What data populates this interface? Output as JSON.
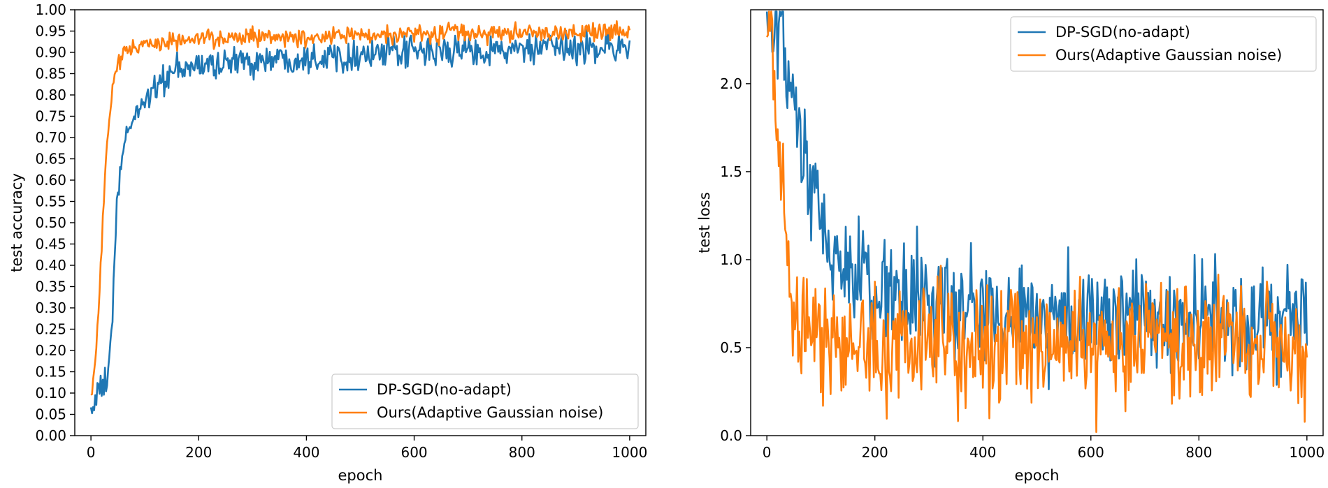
{
  "chart_data": [
    {
      "type": "line",
      "xlabel": "epoch",
      "ylabel": "test accuracy",
      "xlim": [
        -30,
        1030
      ],
      "ylim": [
        0.0,
        1.0
      ],
      "xticks": [
        0,
        200,
        400,
        600,
        800,
        1000
      ],
      "xtick_labels": [
        "0",
        "200",
        "400",
        "600",
        "800",
        "1000"
      ],
      "yticks": [
        0.0,
        0.05,
        0.1,
        0.15,
        0.2,
        0.25,
        0.3,
        0.35,
        0.4,
        0.45,
        0.5,
        0.55,
        0.6,
        0.65,
        0.7,
        0.75,
        0.8,
        0.85,
        0.9,
        0.95,
        1.0
      ],
      "ytick_labels": [
        "0.00",
        "0.05",
        "0.10",
        "0.15",
        "0.20",
        "0.25",
        "0.30",
        "0.35",
        "0.40",
        "0.45",
        "0.50",
        "0.55",
        "0.60",
        "0.65",
        "0.70",
        "0.75",
        "0.80",
        "0.85",
        "0.90",
        "0.95",
        "1.00"
      ],
      "legend_position": "lower-right",
      "x": [
        0,
        10,
        20,
        30,
        40,
        50,
        60,
        70,
        80,
        100,
        120,
        150,
        200,
        300,
        400,
        500,
        600,
        700,
        800,
        900,
        1000
      ],
      "series": [
        {
          "name": "DP-SGD(no-adapt)",
          "color": "#1f77b4",
          "values": [
            0.06,
            0.09,
            0.11,
            0.13,
            0.28,
            0.58,
            0.66,
            0.72,
            0.75,
            0.79,
            0.82,
            0.85,
            0.87,
            0.88,
            0.89,
            0.895,
            0.9,
            0.905,
            0.905,
            0.91,
            0.915
          ],
          "noise": 0.018
        },
        {
          "name": "Ours(Adaptive Gaussian noise)",
          "color": "#ff7f0e",
          "values": [
            0.09,
            0.2,
            0.45,
            0.7,
            0.82,
            0.87,
            0.9,
            0.905,
            0.91,
            0.915,
            0.92,
            0.925,
            0.93,
            0.935,
            0.935,
            0.94,
            0.945,
            0.945,
            0.945,
            0.945,
            0.945
          ],
          "noise": 0.011
        }
      ]
    },
    {
      "type": "line",
      "xlabel": "epoch",
      "ylabel": "test loss",
      "xlim": [
        -30,
        1030
      ],
      "ylim": [
        0.0,
        2.42
      ],
      "xticks": [
        0,
        200,
        400,
        600,
        800,
        1000
      ],
      "xtick_labels": [
        "0",
        "200",
        "400",
        "600",
        "800",
        "1000"
      ],
      "yticks": [
        0.0,
        0.5,
        1.0,
        1.5,
        2.0
      ],
      "ytick_labels": [
        "0.0",
        "0.5",
        "1.0",
        "1.5",
        "2.0"
      ],
      "legend_position": "upper-right",
      "x": [
        0,
        10,
        20,
        30,
        40,
        50,
        60,
        70,
        80,
        100,
        120,
        150,
        200,
        300,
        400,
        500,
        600,
        700,
        800,
        900,
        1000
      ],
      "series": [
        {
          "name": "DP-SGD(no-adapt)",
          "color": "#1f77b4",
          "values": [
            2.3,
            2.28,
            2.25,
            2.18,
            2.05,
            1.85,
            1.65,
            1.5,
            1.4,
            1.2,
            1.05,
            0.92,
            0.82,
            0.75,
            0.7,
            0.68,
            0.68,
            0.67,
            0.66,
            0.66,
            0.65
          ],
          "noise": 0.16
        },
        {
          "name": "Ours(Adaptive Gaussian noise)",
          "color": "#ff7f0e",
          "values": [
            2.3,
            2.15,
            1.8,
            1.3,
            0.85,
            0.65,
            0.58,
            0.56,
            0.55,
            0.55,
            0.55,
            0.54,
            0.53,
            0.52,
            0.52,
            0.51,
            0.51,
            0.5,
            0.5,
            0.5,
            0.5
          ],
          "noise": 0.17
        }
      ]
    }
  ]
}
